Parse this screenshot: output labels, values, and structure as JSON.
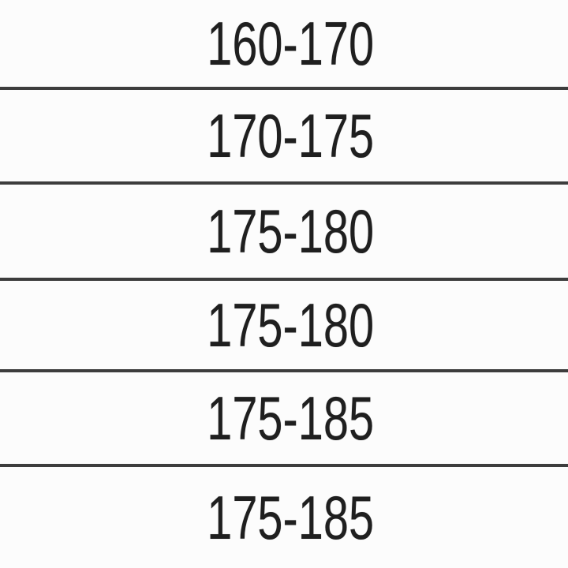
{
  "table": {
    "rows": [
      {
        "value": "160-170"
      },
      {
        "value": "170-175"
      },
      {
        "value": "175-180"
      },
      {
        "value": "175-180"
      },
      {
        "value": "175-185"
      },
      {
        "value": "175-185"
      }
    ],
    "colors": {
      "background": "#fcfcfc",
      "text": "#1f1f1f",
      "separator_line": "#3d3d3d"
    }
  }
}
